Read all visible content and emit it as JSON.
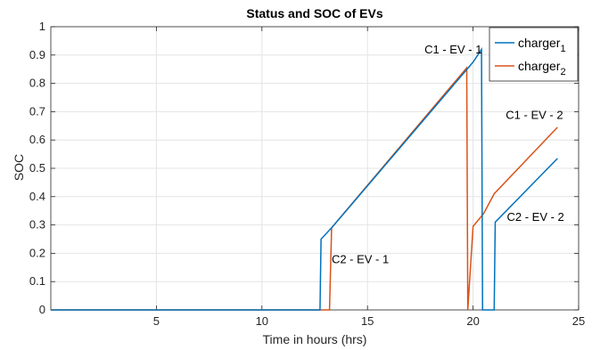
{
  "chart_data": {
    "type": "line",
    "title": "Status and SOC of EVs",
    "xlabel": "Time in hours (hrs)",
    "ylabel": "SOC",
    "xlim": [
      0,
      25
    ],
    "ylim": [
      0,
      1
    ],
    "grid": true,
    "legend_position": "top-right",
    "x_ticks": [
      5,
      10,
      15,
      20,
      25
    ],
    "y_ticks": [
      0,
      0.1,
      0.2,
      0.3,
      0.4,
      0.5,
      0.6,
      0.7,
      0.8,
      0.9,
      1
    ],
    "y_tick_labels": [
      "0",
      "0.1",
      "0.2",
      "0.3",
      "0.4",
      "0.5",
      "0.6",
      "0.7",
      "0.8",
      "0.9",
      "1"
    ],
    "x_tick_labels": [
      "5",
      "10",
      "15",
      "20",
      "25"
    ],
    "series": [
      {
        "name": "charger",
        "subscript": "1",
        "color": "#0072BD",
        "x": [
          0,
          12.75,
          12.8,
          13.3,
          19.6,
          20.0,
          20.4,
          20.45,
          21.0,
          21.05,
          24.0
        ],
        "y": [
          0,
          0,
          0.25,
          0.29,
          0.84,
          0.875,
          0.92,
          0,
          0,
          0.31,
          0.535
        ]
      },
      {
        "name": "charger",
        "subscript": "2",
        "color": "#D95319",
        "x": [
          0,
          13.2,
          13.3,
          19.7,
          19.75,
          20.0,
          20.5,
          21.0,
          24.0
        ],
        "y": [
          0,
          0,
          0.29,
          0.855,
          0,
          0.295,
          0.34,
          0.41,
          0.645
        ]
      }
    ],
    "annotations": [
      {
        "text": "C1 - EV - 1",
        "x": 17.7,
        "y": 0.905
      },
      {
        "text": "C1 - EV - 2",
        "x": 21.55,
        "y": 0.675
      },
      {
        "text": "C2 - EV - 2",
        "x": 21.6,
        "y": 0.315
      },
      {
        "text": "C2 - EV - 1",
        "x": 13.3,
        "y": 0.165
      }
    ]
  }
}
